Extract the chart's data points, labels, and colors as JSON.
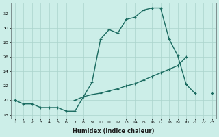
{
  "xlabel": "Humidex (Indice chaleur)",
  "background_color": "#cceee8",
  "grid_color": "#aad4cc",
  "line_color": "#1a6b60",
  "x_values": [
    0,
    1,
    2,
    3,
    4,
    5,
    6,
    7,
    8,
    9,
    10,
    11,
    12,
    13,
    14,
    15,
    16,
    17,
    18,
    19,
    20,
    21,
    22,
    23
  ],
  "line1": [
    20,
    19.5,
    19.5,
    19,
    19,
    19,
    18.5,
    18.5,
    20.5,
    22.5,
    28.5,
    29.8,
    29.3,
    31.2,
    31.5,
    32.5,
    32.8,
    32.8,
    28.5,
    null,
    null,
    null,
    null,
    null
  ],
  "line2": [
    20,
    null,
    null,
    null,
    null,
    null,
    null,
    null,
    null,
    null,
    null,
    null,
    null,
    null,
    null,
    null,
    null,
    null,
    28.5,
    26.2,
    22.2,
    21.0,
    null,
    21.0
  ],
  "line3": [
    20,
    null,
    null,
    null,
    null,
    null,
    null,
    null,
    null,
    null,
    null,
    null,
    null,
    null,
    null,
    null,
    null,
    null,
    null,
    null,
    null,
    null,
    null,
    21.0
  ],
  "line4": [
    20,
    null,
    null,
    null,
    null,
    null,
    null,
    20.0,
    20.5,
    20.8,
    21.0,
    21.3,
    21.6,
    22.0,
    22.3,
    22.8,
    23.3,
    23.8,
    24.3,
    24.8,
    26.0,
    null,
    null,
    21.0
  ],
  "ylim": [
    17.5,
    33.5
  ],
  "xlim": [
    -0.5,
    23.5
  ],
  "yticks": [
    18,
    20,
    22,
    24,
    26,
    28,
    30,
    32
  ],
  "xticks": [
    0,
    1,
    2,
    3,
    4,
    5,
    6,
    7,
    8,
    9,
    10,
    11,
    12,
    13,
    14,
    15,
    16,
    17,
    18,
    19,
    20,
    21,
    22,
    23
  ]
}
